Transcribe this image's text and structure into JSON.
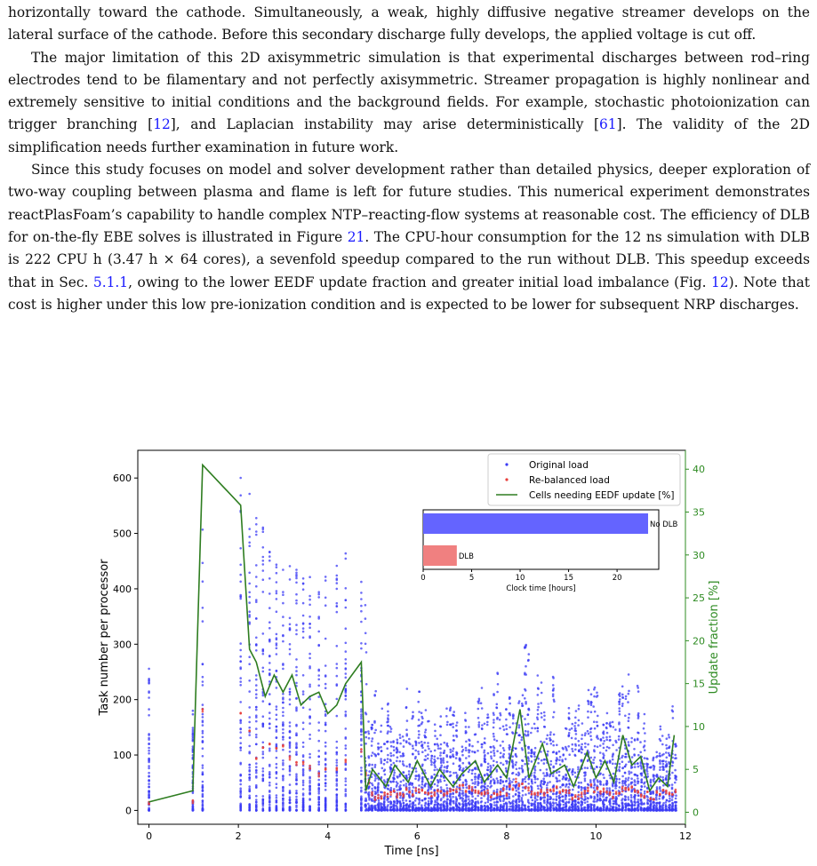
{
  "paragraphs": [
    {
      "indent": false,
      "parts": [
        {
          "t": "horizontally toward the cathode. Simultaneously, a weak, highly diffusive negative streamer develops on the lateral surface of the cathode. Before this secondary discharge fully develops, the applied voltage is cut off."
        }
      ]
    },
    {
      "indent": true,
      "parts": [
        {
          "t": "The major limitation of this 2D axisymmetric simulation is that experimental discharges between rod–ring electrodes tend to be filamentary and not perfectly axisymmetric. Streamer propagation is highly nonlinear and extremely sensitive to initial conditions and the background fields. For example, stochastic photoionization can trigger branching ["
        },
        {
          "t": "12",
          "ref": true
        },
        {
          "t": "], and Laplacian instability may arise deterministically ["
        },
        {
          "t": "61",
          "ref": true
        },
        {
          "t": "]. The validity of the 2D simplification needs further examination in future work."
        }
      ]
    },
    {
      "indent": true,
      "parts": [
        {
          "t": "Since this study focuses on model and solver development rather than detailed physics, deeper exploration of two-way coupling between plasma and flame is left for future studies. This numerical experiment demonstrates reactPlasFoam’s capability to handle complex NTP–reacting-flow systems at reasonable cost. The efficiency of DLB for on-the-fly EBE solves is illustrated in Figure "
        },
        {
          "t": "21",
          "ref": true
        },
        {
          "t": ". The CPU-hour consumption for the 12 ns simulation with DLB is 222 CPU h (3.47 h × 64 cores), a sevenfold speedup compared to the run without DLB. This speedup exceeds that in Sec. "
        },
        {
          "t": "5.1.1",
          "ref": true
        },
        {
          "t": ", owing to the lower EEDF update fraction and greater initial load imbalance (Fig. "
        },
        {
          "t": "12",
          "ref": true
        },
        {
          "t": "). Note that cost is higher under this low pre-ionization condition and is expected to be lower for subsequent NRP discharges."
        }
      ]
    }
  ],
  "chart_data": [
    {
      "type": "scatter",
      "xlabel": "Time [ns]",
      "ylabel": "Task number per processor",
      "y2label": "Update fraction [%]",
      "xlim": [
        -0.25,
        12.0
      ],
      "ylim": [
        -25,
        650
      ],
      "y2lim": [
        -1.4,
        42.2
      ],
      "xticks": [
        0,
        2,
        4,
        6,
        8,
        10,
        12
      ],
      "yticks": [
        0,
        100,
        200,
        300,
        400,
        500,
        600
      ],
      "y2ticks": [
        0,
        5,
        10,
        15,
        20,
        25,
        30,
        35,
        40
      ],
      "legend_position": "top-right",
      "colors": {
        "original": "#3b3bf5",
        "rebalanced": "#e8403c",
        "line": "#2e7d20",
        "axis2": "#2e8b22"
      },
      "series": [
        {
          "name": "Original load",
          "kind": "scatter",
          "note": "per-processor task counts (64 processors) at each EEDF update step; max per step given",
          "max_envelope_x": [
            0,
            0.98,
            1.2,
            2.05,
            2.25,
            2.4,
            2.6,
            2.8,
            3.0,
            3.2,
            3.4,
            3.6,
            3.8,
            4.0,
            4.2,
            4.4,
            4.75,
            5.0,
            5.5,
            6.0,
            6.5,
            7.0,
            7.5,
            8.0,
            8.3,
            8.6,
            9.0,
            9.5,
            10.0,
            10.4,
            10.8,
            11.2,
            11.75
          ],
          "max_envelope_y": [
            260,
            180,
            520,
            620,
            580,
            565,
            500,
            460,
            450,
            440,
            440,
            440,
            430,
            430,
            450,
            465,
            535,
            215,
            225,
            235,
            210,
            250,
            250,
            250,
            395,
            285,
            280,
            190,
            275,
            195,
            285,
            155,
            255
          ]
        },
        {
          "name": "Re-balanced load",
          "kind": "scatter",
          "note": "balanced task count per step",
          "x": [
            0,
            0.98,
            1.2,
            2.05,
            2.25,
            2.4,
            2.6,
            2.8,
            3.0,
            3.2,
            3.4,
            3.6,
            3.8,
            4.0,
            4.2,
            4.4,
            4.75,
            5.0,
            5.5,
            6.0,
            6.5,
            7.0,
            7.5,
            8.0,
            8.3,
            8.6,
            9.0,
            9.5,
            10.0,
            10.4,
            10.8,
            11.2,
            11.75
          ],
          "y": [
            12,
            15,
            200,
            190,
            125,
            95,
            110,
            95,
            100,
            80,
            85,
            90,
            80,
            70,
            80,
            90,
            90,
            25,
            30,
            35,
            30,
            40,
            30,
            35,
            55,
            35,
            40,
            25,
            40,
            25,
            40,
            25,
            35
          ]
        },
        {
          "name": "Cells needing EEDF update [%]",
          "kind": "line",
          "axis": "y2",
          "x": [
            0,
            0.98,
            1.2,
            2.05,
            2.25,
            2.4,
            2.6,
            2.8,
            3.0,
            3.2,
            3.4,
            3.6,
            3.8,
            4.0,
            4.2,
            4.4,
            4.75,
            4.85,
            5.0,
            5.3,
            5.5,
            5.8,
            6.0,
            6.3,
            6.5,
            6.8,
            7.0,
            7.3,
            7.5,
            7.8,
            8.0,
            8.3,
            8.5,
            8.8,
            9.0,
            9.3,
            9.5,
            9.8,
            10.0,
            10.2,
            10.4,
            10.6,
            10.8,
            11.0,
            11.2,
            11.4,
            11.6,
            11.75
          ],
          "y": [
            1.2,
            2.5,
            40.5,
            35.8,
            19.0,
            17.5,
            13.5,
            16.0,
            14.0,
            16.0,
            12.5,
            13.5,
            14.0,
            11.5,
            12.5,
            15.0,
            17.5,
            2.5,
            5.0,
            3.0,
            5.5,
            3.5,
            6.0,
            3.0,
            5.0,
            3.0,
            4.5,
            6.0,
            3.5,
            5.5,
            4.0,
            12.0,
            4.0,
            8.0,
            4.5,
            5.5,
            3.0,
            7.0,
            4.0,
            6.0,
            3.5,
            9.0,
            5.5,
            6.5,
            2.5,
            4.0,
            3.0,
            9.0
          ]
        }
      ]
    },
    {
      "type": "bar",
      "orientation": "horizontal",
      "xlabel": "Clock time [hours]",
      "xlim": [
        0,
        24.3
      ],
      "xticks": [
        0,
        5,
        10,
        15,
        20
      ],
      "categories": [
        "No DLB",
        "DLB"
      ],
      "values": [
        23.2,
        3.47
      ],
      "colors": [
        "#6464ff",
        "#f08080"
      ]
    }
  ]
}
